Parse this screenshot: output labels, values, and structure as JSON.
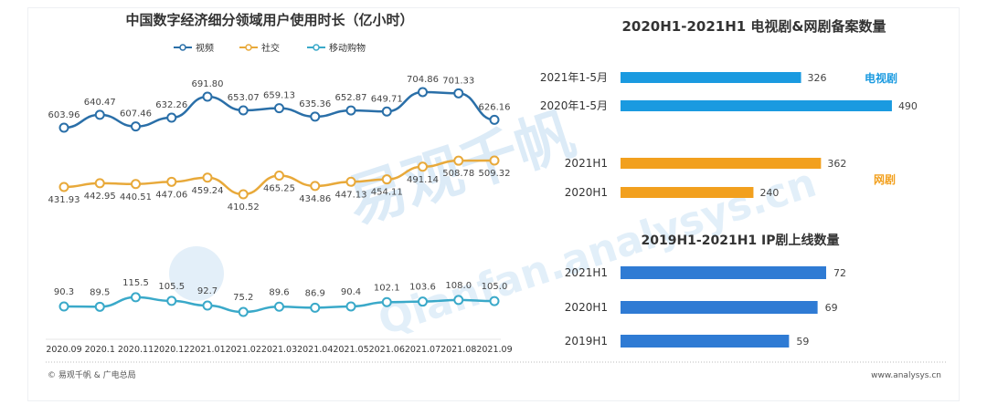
{
  "watermark": {
    "brand": "易观千帆",
    "url": "Qianfan.analysys.cn"
  },
  "footer": {
    "source": "© 易观千帆 & 广电总局",
    "site": "www.analysys.cn"
  },
  "colors": {
    "video": "#2a6fa8",
    "social": "#e8a93a",
    "shopping": "#3aa9c9",
    "tv_bar": "#1a9ae0",
    "web_bar": "#f2a01e",
    "ip_bar": "#2f7bd4"
  },
  "chart_data": [
    {
      "type": "line",
      "title": "中国数字经济细分领域用户使用时长（亿小时）",
      "legend_position": "top-center",
      "categories": [
        "2020.09",
        "2020.1",
        "2020.11",
        "2020.12",
        "2021.01",
        "2021.02",
        "2021.03",
        "2021.04",
        "2021.05",
        "2021.06",
        "2021.07",
        "2021.08",
        "2021.09"
      ],
      "series": [
        {
          "name": "视频",
          "values": [
            603.96,
            640.47,
            607.46,
            632.26,
            691.8,
            653.07,
            659.13,
            635.36,
            652.87,
            649.71,
            704.86,
            701.33,
            626.16
          ],
          "labels": [
            "603.96",
            "640.47",
            "607.46",
            "632.26",
            "691.80",
            "653.07",
            "659.13",
            "635.36",
            "652.87",
            "649.71",
            "704.86",
            "701.33",
            "626.16"
          ]
        },
        {
          "name": "社交",
          "values": [
            431.93,
            442.95,
            440.51,
            447.06,
            459.24,
            410.52,
            465.25,
            434.86,
            447.13,
            454.11,
            491.14,
            508.78,
            509.32
          ],
          "labels": [
            "431.93",
            "442.95",
            "440.51",
            "447.06",
            "459.24",
            "410.52",
            "465.25",
            "434.86",
            "447.13",
            "454.11",
            "491.14",
            "508.78",
            "509.32"
          ]
        },
        {
          "name": "移动购物",
          "values": [
            90.3,
            89.5,
            115.5,
            105.5,
            92.7,
            75.2,
            89.6,
            86.9,
            90.4,
            102.1,
            103.6,
            108.0,
            105.0
          ],
          "labels": [
            "90.3",
            "89.5",
            "115.5",
            "105.5",
            "92.7",
            "75.2",
            "89.6",
            "86.9",
            "90.4",
            "102.1",
            "103.6",
            "108.0",
            "105.0"
          ]
        }
      ]
    },
    {
      "type": "bar",
      "orientation": "horizontal",
      "title": "2020H1-2021H1 电视剧&网剧备案数量",
      "groups": [
        {
          "name": "电视剧",
          "categories": [
            "2021年1-5月",
            "2020年1-5月"
          ],
          "values": [
            326,
            490
          ]
        },
        {
          "name": "网剧",
          "categories": [
            "2021H1",
            "2020H1"
          ],
          "values": [
            362,
            240
          ]
        }
      ]
    },
    {
      "type": "bar",
      "orientation": "horizontal",
      "title": "2019H1-2021H1 IP剧上线数量",
      "categories": [
        "2021H1",
        "2020H1",
        "2019H1"
      ],
      "values": [
        72,
        69,
        59
      ]
    }
  ]
}
